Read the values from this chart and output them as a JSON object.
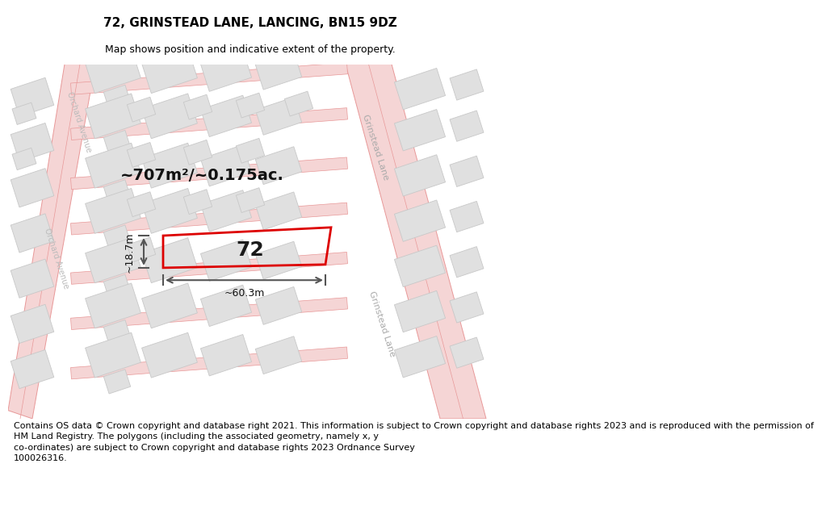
{
  "title": "72, GRINSTEAD LANE, LANCING, BN15 9DZ",
  "subtitle": "Map shows position and indicative extent of the property.",
  "footer_line1": "Contains OS data © Crown copyright and database right 2021. This information is subject to Crown copyright and database rights 2023 and is reproduced with the permission of",
  "footer_line2": "HM Land Registry. The polygons (including the associated geometry, namely x, y",
  "footer_line3": "co-ordinates) are subject to Crown copyright and database rights 2023 Ordnance Survey",
  "footer_line4": "100026316.",
  "area_label": "~707m²/~0.175ac.",
  "width_label": "~60.3m",
  "height_label": "~18.7m",
  "plot_number": "72",
  "map_bg": "#ffffff",
  "road_fill": "#f5d5d5",
  "road_line": "#e89898",
  "bld_fill": "#e0e0e0",
  "bld_stroke": "#c8c8c8",
  "plot_stroke": "#dd0000",
  "dim_color": "#555555",
  "street_label_color": "#aaaaaa",
  "title_fontsize": 11,
  "subtitle_fontsize": 9,
  "footer_fontsize": 8,
  "area_fontsize": 14,
  "dim_fontsize": 9,
  "plot_label_fontsize": 18,
  "street_label_fontsize": 8
}
